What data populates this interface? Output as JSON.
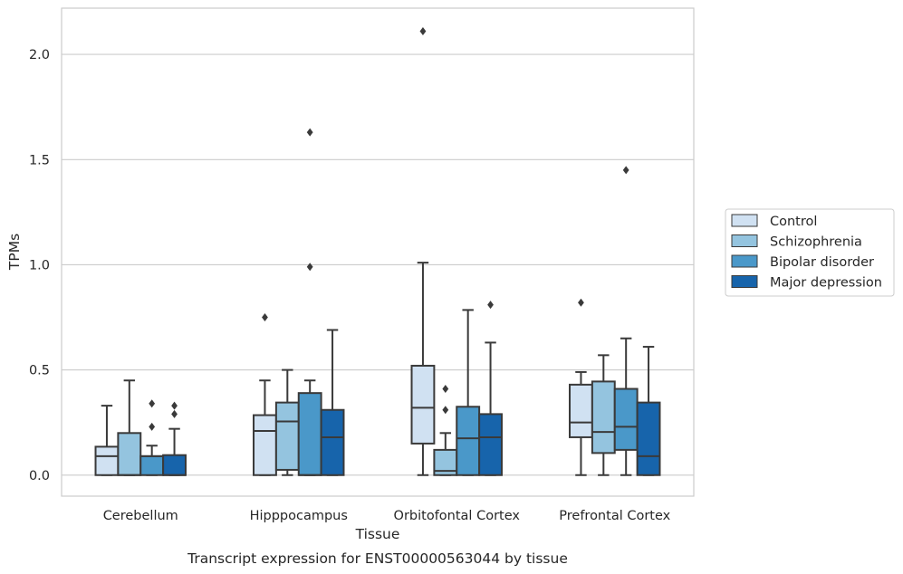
{
  "caption": "Transcript expression for ENST00000563044 by tissue",
  "chart_data": {
    "type": "box",
    "xlabel": "Tissue",
    "ylabel": "TPMs",
    "ylim": [
      -0.1,
      2.22
    ],
    "yticks": [
      0.0,
      0.5,
      1.0,
      1.5,
      2.0
    ],
    "ytick_labels": [
      "0.0",
      "0.5",
      "1.0",
      "1.5",
      "2.0"
    ],
    "grid": "horizontal",
    "legend_position": "right",
    "categories": [
      "Cerebellum",
      "Hipppocampus",
      "Orbitofontal Cortex",
      "Prefrontal Cortex"
    ],
    "series": [
      {
        "name": "Control",
        "color": "#d0e1f2",
        "boxes": [
          {
            "whislo": 0.0,
            "q1": 0.0,
            "med": 0.09,
            "q3": 0.135,
            "whishi": 0.33,
            "fliers": []
          },
          {
            "whislo": 0.0,
            "q1": 0.0,
            "med": 0.21,
            "q3": 0.285,
            "whishi": 0.45,
            "fliers": [
              0.75
            ]
          },
          {
            "whislo": 0.0,
            "q1": 0.15,
            "med": 0.32,
            "q3": 0.52,
            "whishi": 1.01,
            "fliers": [
              2.11
            ]
          },
          {
            "whislo": 0.0,
            "q1": 0.18,
            "med": 0.25,
            "q3": 0.43,
            "whishi": 0.49,
            "fliers": [
              0.82
            ]
          }
        ]
      },
      {
        "name": "Schizophrenia",
        "color": "#94c4df",
        "boxes": [
          {
            "whislo": 0.0,
            "q1": 0.0,
            "med": 0.0,
            "q3": 0.2,
            "whishi": 0.45,
            "fliers": []
          },
          {
            "whislo": 0.0,
            "q1": 0.025,
            "med": 0.255,
            "q3": 0.345,
            "whishi": 0.5,
            "fliers": []
          },
          {
            "whislo": 0.0,
            "q1": 0.0,
            "med": 0.02,
            "q3": 0.12,
            "whishi": 0.2,
            "fliers": [
              0.31,
              0.41
            ]
          },
          {
            "whislo": 0.0,
            "q1": 0.105,
            "med": 0.205,
            "q3": 0.445,
            "whishi": 0.57,
            "fliers": []
          }
        ]
      },
      {
        "name": "Bipolar disorder",
        "color": "#4a98c9",
        "boxes": [
          {
            "whislo": 0.0,
            "q1": 0.0,
            "med": 0.09,
            "q3": 0.09,
            "whishi": 0.14,
            "fliers": [
              0.23,
              0.34
            ]
          },
          {
            "whislo": 0.0,
            "q1": 0.0,
            "med": 0.0,
            "q3": 0.39,
            "whishi": 0.45,
            "fliers": [
              0.99,
              1.63
            ]
          },
          {
            "whislo": 0.0,
            "q1": 0.0,
            "med": 0.175,
            "q3": 0.325,
            "whishi": 0.785,
            "fliers": []
          },
          {
            "whislo": 0.0,
            "q1": 0.12,
            "med": 0.23,
            "q3": 0.41,
            "whishi": 0.65,
            "fliers": [
              1.45
            ]
          }
        ]
      },
      {
        "name": "Major depression",
        "color": "#1764ab",
        "boxes": [
          {
            "whislo": 0.0,
            "q1": 0.0,
            "med": 0.0,
            "q3": 0.095,
            "whishi": 0.22,
            "fliers": [
              0.29,
              0.33
            ]
          },
          {
            "whislo": 0.0,
            "q1": 0.0,
            "med": 0.18,
            "q3": 0.31,
            "whishi": 0.69,
            "fliers": []
          },
          {
            "whislo": 0.0,
            "q1": 0.0,
            "med": 0.18,
            "q3": 0.29,
            "whishi": 0.63,
            "fliers": [
              0.81
            ]
          },
          {
            "whislo": 0.0,
            "q1": 0.0,
            "med": 0.09,
            "q3": 0.345,
            "whishi": 0.61,
            "fliers": []
          }
        ]
      }
    ]
  }
}
